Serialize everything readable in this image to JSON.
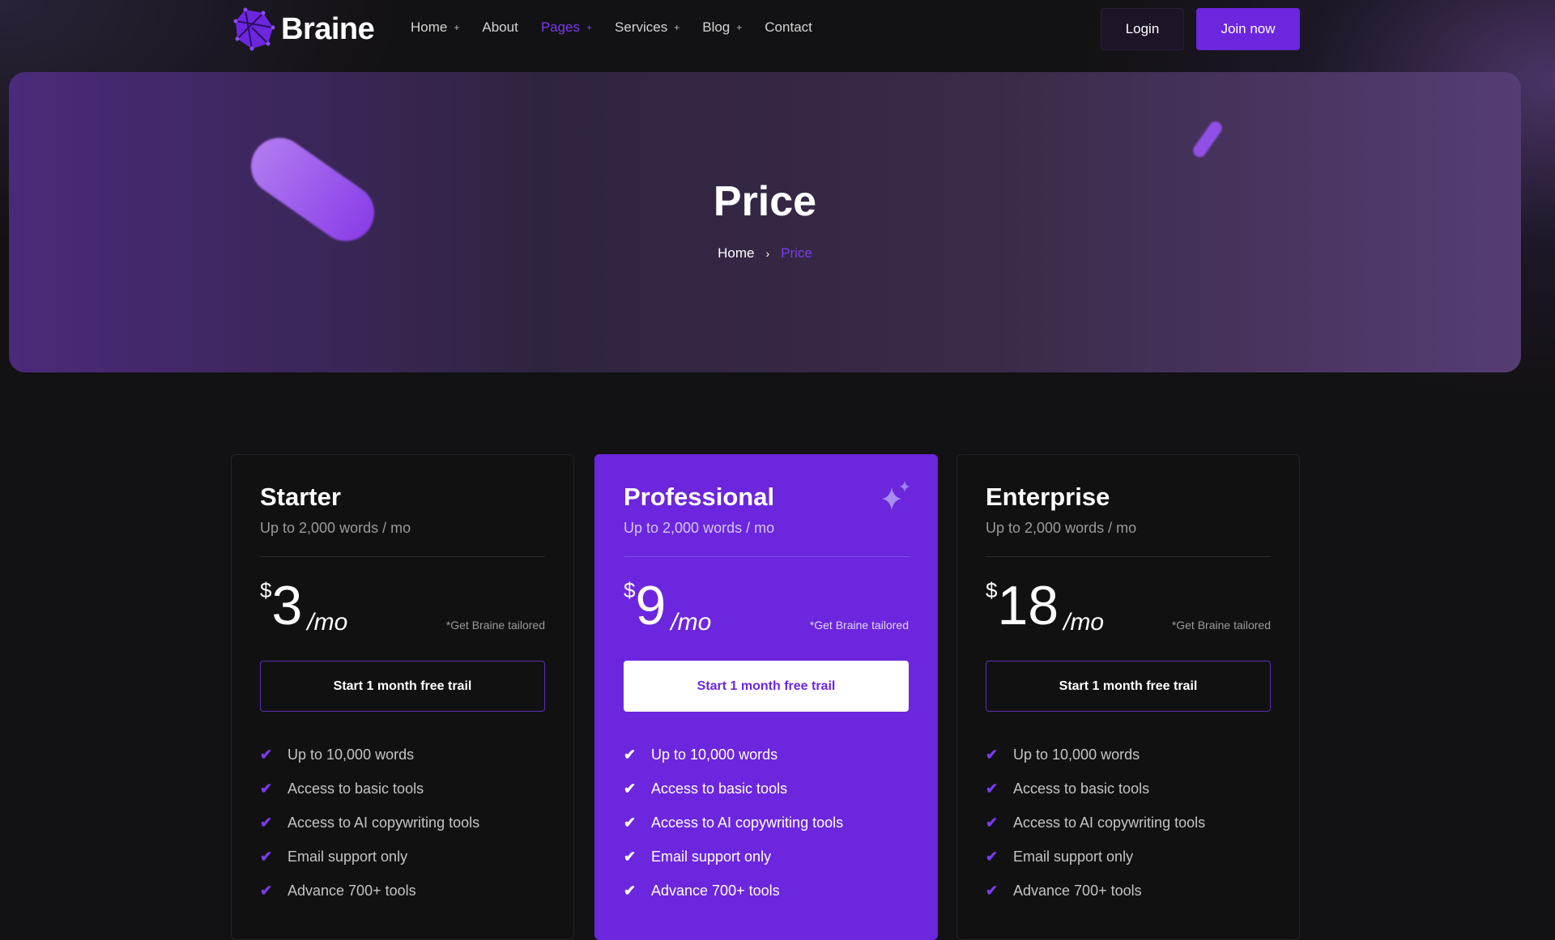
{
  "nav": {
    "brand": "Braine",
    "items": [
      {
        "label": "Home",
        "plus": "+"
      },
      {
        "label": "About",
        "plus": ""
      },
      {
        "label": "Pages",
        "plus": "+"
      },
      {
        "label": "Services",
        "plus": "+"
      },
      {
        "label": "Blog",
        "plus": "+"
      },
      {
        "label": "Contact",
        "plus": ""
      }
    ],
    "active": "Pages",
    "login": "Login",
    "join": "Join now"
  },
  "hero": {
    "title": "Price",
    "breadcrumb": {
      "home": "Home",
      "separator": "›",
      "current": "Price"
    }
  },
  "colors": {
    "accent": "#6c26dd",
    "background": "#121113"
  },
  "plans": [
    {
      "name": "Starter",
      "subtitle": "Up to 2,000 words / mo",
      "currency": "$",
      "amount": "3",
      "period": "/mo",
      "note": "*Get Braine tailored",
      "cta": "Start 1 month free trail",
      "features": [
        "Up to 10,000 words",
        "Access to basic tools",
        "Access to AI copywriting tools",
        "Email support only",
        "Advance 700+ tools"
      ]
    },
    {
      "name": "Professional",
      "subtitle": "Up to 2,000 words / mo",
      "currency": "$",
      "amount": "9",
      "period": "/mo",
      "note": "*Get Braine tailored",
      "cta": "Start 1 month free trail",
      "highlighted": true,
      "features": [
        "Up to 10,000 words",
        "Access to basic tools",
        "Access to AI copywriting tools",
        "Email support only",
        "Advance 700+ tools"
      ]
    },
    {
      "name": "Enterprise",
      "subtitle": "Up to 2,000 words / mo",
      "currency": "$",
      "amount": "18",
      "period": "/mo",
      "note": "*Get Braine tailored",
      "cta": "Start 1 month free trail",
      "features": [
        "Up to 10,000 words",
        "Access to basic tools",
        "Access to AI copywriting tools",
        "Email support only",
        "Advance 700+ tools"
      ]
    }
  ]
}
